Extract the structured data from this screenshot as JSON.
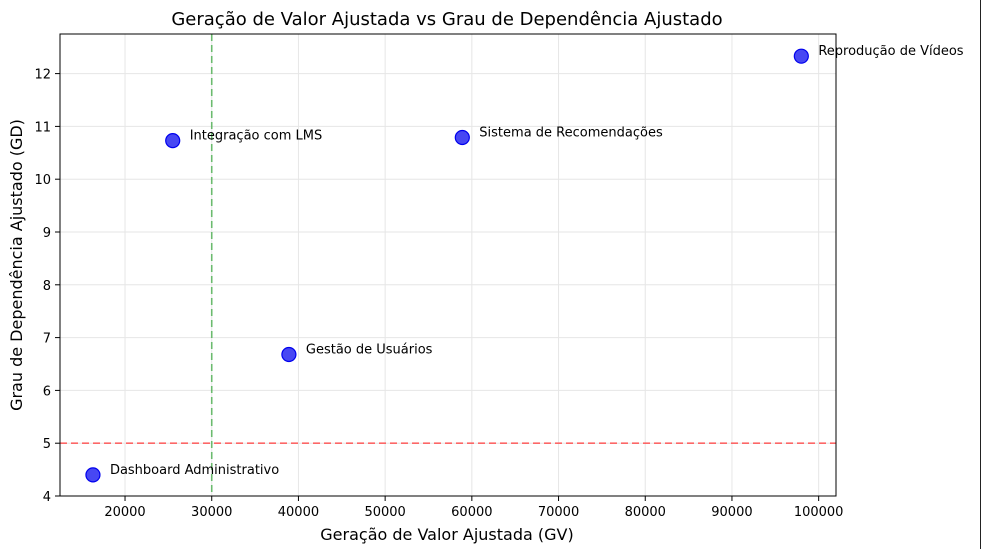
{
  "chart_data": {
    "type": "scatter",
    "title": "Geração de Valor Ajustada vs Grau de Dependência Ajustado",
    "xlabel": "Geração de Valor Ajustada (GV)",
    "ylabel": "Grau de Dependência Ajustado (GD)",
    "xlim": [
      12500,
      102000
    ],
    "ylim": [
      4,
      12.75
    ],
    "xticks": [
      20000,
      30000,
      40000,
      50000,
      60000,
      70000,
      80000,
      90000,
      100000
    ],
    "yticks": [
      4,
      5,
      6,
      7,
      8,
      9,
      10,
      11,
      12
    ],
    "grid": true,
    "point_color": "#0000ee",
    "points": [
      {
        "label": "Reprodução de Vídeos",
        "x": 98000,
        "y": 12.33
      },
      {
        "label": "Integração com LMS",
        "x": 25500,
        "y": 10.73
      },
      {
        "label": "Sistema de Recomendações",
        "x": 58900,
        "y": 10.79
      },
      {
        "label": "Gestão de Usuários",
        "x": 38900,
        "y": 6.68
      },
      {
        "label": "Dashboard Administrativo",
        "x": 16300,
        "y": 4.4
      }
    ],
    "reference_lines": [
      {
        "orientation": "vertical",
        "value": 30000,
        "color": "#4caf50",
        "style": "dashed"
      },
      {
        "orientation": "horizontal",
        "value": 5,
        "color": "#ff5050",
        "style": "dashed"
      }
    ]
  }
}
